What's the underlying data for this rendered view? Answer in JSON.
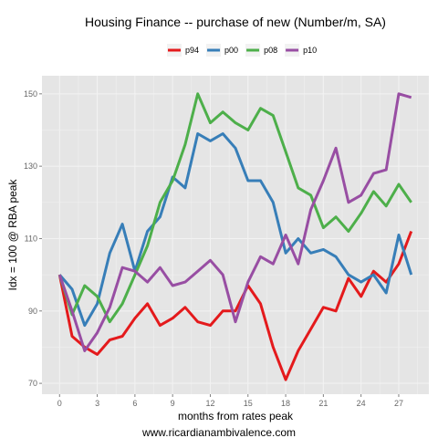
{
  "chart_data": {
    "type": "line",
    "title": "Housing Finance -- purchase of new (Number/m, SA)",
    "xlabel": "months from rates peak",
    "ylabel": "Idx = 100 @ RBA peak",
    "footer": "www.ricardianambivalence.com",
    "xlim": [
      -1.4,
      29.4
    ],
    "ylim": [
      67,
      155
    ],
    "xticks": [
      0,
      3,
      6,
      9,
      12,
      15,
      18,
      21,
      24,
      27
    ],
    "yticks": [
      70,
      90,
      110,
      130,
      150
    ],
    "grid": true,
    "legend_position": "top",
    "x": [
      0,
      1,
      2,
      3,
      4,
      5,
      6,
      7,
      8,
      9,
      10,
      11,
      12,
      13,
      14,
      15,
      16,
      17,
      18,
      19,
      20,
      21,
      22,
      23,
      24,
      25,
      26,
      27,
      28
    ],
    "series": [
      {
        "name": "p94",
        "color": "#e41a1c",
        "values": [
          100,
          83,
          80,
          78,
          82,
          83,
          88,
          92,
          86,
          88,
          91,
          87,
          86,
          90,
          90,
          97,
          92,
          80,
          71,
          79,
          85,
          91,
          90,
          99,
          94,
          101,
          98,
          103,
          112
        ]
      },
      {
        "name": "p00",
        "color": "#377eb8",
        "values": [
          100,
          96,
          86,
          92,
          106,
          114,
          101,
          112,
          116,
          127,
          124,
          139,
          137,
          139,
          135,
          126,
          126,
          120,
          106,
          110,
          106,
          107,
          105,
          100,
          98,
          100,
          95,
          111,
          100
        ]
      },
      {
        "name": "p08",
        "color": "#4daf4a",
        "values": [
          100,
          89,
          97,
          94,
          87,
          92,
          100,
          108,
          120,
          126,
          136,
          150,
          142,
          145,
          142,
          140,
          146,
          144,
          134,
          124,
          122,
          113,
          116,
          112,
          117,
          123,
          119,
          125,
          120
        ]
      },
      {
        "name": "p10",
        "color": "#984ea3",
        "values": [
          100,
          90,
          79,
          84,
          91,
          102,
          101,
          98,
          102,
          97,
          98,
          101,
          104,
          100,
          87,
          98,
          105,
          103,
          111,
          103,
          118,
          126,
          135,
          120,
          122,
          128,
          129,
          150,
          149
        ]
      }
    ]
  }
}
